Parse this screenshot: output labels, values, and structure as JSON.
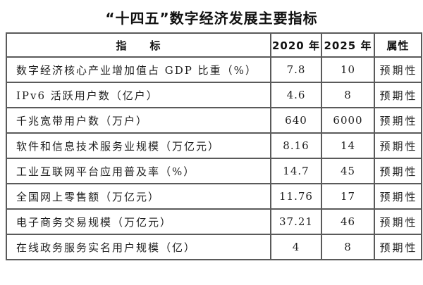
{
  "title": "“十四五”数字经济发展主要指标",
  "colors": {
    "background": "#ffffff",
    "border": "#5a5a5a",
    "text": "#1f1f1f"
  },
  "table": {
    "headers": {
      "indicator": "指　　标",
      "y2020": "2020 年",
      "y2025": "2025 年",
      "attribute": "属性"
    }
  },
  "chart_data": {
    "type": "table",
    "title": "“十四五”数字经济发展主要指标",
    "columns": [
      "指标",
      "2020 年",
      "2025 年",
      "属性"
    ],
    "rows": [
      [
        "数字经济核心产业增加值占 GDP 比重（%）",
        "7.8",
        "10",
        "预期性"
      ],
      [
        "IPv6 活跃用户数（亿户）",
        "4.6",
        "8",
        "预期性"
      ],
      [
        "千兆宽带用户数（万户）",
        "640",
        "6000",
        "预期性"
      ],
      [
        "软件和信息技术服务业规模（万亿元）",
        "8.16",
        "14",
        "预期性"
      ],
      [
        "工业互联网平台应用普及率（%）",
        "14.7",
        "45",
        "预期性"
      ],
      [
        "全国网上零售额（万亿元）",
        "11.76",
        "17",
        "预期性"
      ],
      [
        "电子商务交易规模（万亿元）",
        "37.21",
        "46",
        "预期性"
      ],
      [
        "在线政务服务实名用户规模（亿）",
        "4",
        "8",
        "预期性"
      ]
    ]
  }
}
